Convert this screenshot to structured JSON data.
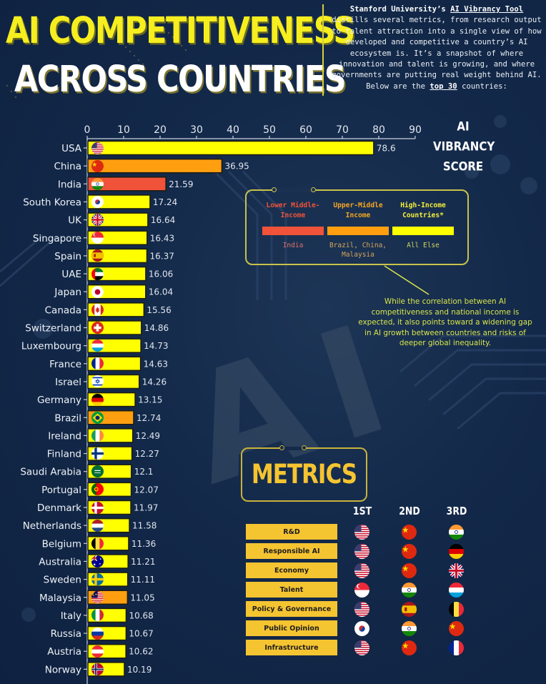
{
  "header": {
    "title_line1": "AI COMPETITIVENESS",
    "title_line2": "ACROSS COUNTRIES",
    "intro_prefix": "Stanford University’s ",
    "intro_link": "AI Vibrancy Tool",
    "intro_body": " distills several metrics, from research output to talent attraction into a single view of how developed and competitive a country’s AI ecosystem is. It’s a snapshot of where innovation and talent is growing, and where governments are putting real weight behind AI. Below are the ",
    "intro_emphasis": "top 30",
    "intro_suffix": " countries:"
  },
  "colors": {
    "high_income": "#ffff00",
    "upper_middle": "#ff9f10",
    "lower_middle": "#f0533a",
    "accent_yellow": "#f6ee1f",
    "metric_gold": "#f5c431"
  },
  "chart_data": {
    "type": "bar",
    "orientation": "horizontal",
    "title": "AI Competitiveness Across Countries",
    "xlabel": "AI VIBRANCY SCORE",
    "ylabel": "",
    "xlim": [
      0,
      90
    ],
    "xticks": [
      0,
      10,
      20,
      30,
      40,
      50,
      60,
      70,
      80,
      90
    ],
    "grid": false,
    "legend_position": "right",
    "categories": [
      "USA",
      "China",
      "India",
      "South Korea",
      "UK",
      "Singapore",
      "Spain",
      "UAE",
      "Japan",
      "Canada",
      "Switzerland",
      "Luxembourg",
      "France",
      "Israel",
      "Germany",
      "Brazil",
      "Ireland",
      "Finland",
      "Saudi Arabia",
      "Portugal",
      "Denmark",
      "Netherlands",
      "Belgium",
      "Australia",
      "Sweden",
      "Malaysia",
      "Italy",
      "Russia",
      "Austria",
      "Norway"
    ],
    "values": [
      78.6,
      36.95,
      21.59,
      17.24,
      16.64,
      16.43,
      16.37,
      16.06,
      16.04,
      15.56,
      14.86,
      14.73,
      14.63,
      14.26,
      13.15,
      12.74,
      12.49,
      12.27,
      12.1,
      12.07,
      11.97,
      11.58,
      11.36,
      11.21,
      11.11,
      11.05,
      10.68,
      10.67,
      10.62,
      10.19
    ],
    "value_labels": [
      "78.6",
      "36.95",
      "21.59",
      "17.24",
      "16.64",
      "16.43",
      "16.37",
      "16.06",
      "16.04",
      "15.56",
      "14.86",
      "14.73",
      "14.63",
      "14.26",
      "13.15",
      "12.74",
      "12.49",
      "12.27",
      "12.1",
      "12.07",
      "11.97",
      "11.58",
      "11.36",
      "11.21",
      "11.11",
      "11.05",
      "10.68",
      "10.67",
      "10.62",
      "10.19"
    ],
    "income_group": [
      "high",
      "upper_middle",
      "lower_middle",
      "high",
      "high",
      "high",
      "high",
      "high",
      "high",
      "high",
      "high",
      "high",
      "high",
      "high",
      "high",
      "upper_middle",
      "high",
      "high",
      "high",
      "high",
      "high",
      "high",
      "high",
      "high",
      "high",
      "upper_middle",
      "high",
      "high",
      "high",
      "high"
    ],
    "flags": [
      "usa",
      "china",
      "india",
      "south-korea",
      "uk",
      "singapore",
      "spain",
      "uae",
      "japan",
      "canada",
      "switzerland",
      "luxembourg",
      "france",
      "israel",
      "germany",
      "brazil",
      "ireland",
      "finland",
      "saudi-arabia",
      "portugal",
      "denmark",
      "netherlands",
      "belgium",
      "australia",
      "sweden",
      "malaysia",
      "italy",
      "russia",
      "austria",
      "norway"
    ]
  },
  "axis_title": {
    "line1": "AI",
    "line2": "VIBRANCY",
    "line3": "SCORE"
  },
  "income_legend": [
    {
      "label": "Lower Middle-Income",
      "color": "#f0533a",
      "label_color": "#f0533a",
      "sub": "India",
      "sub_color": "#e0706a"
    },
    {
      "label": "Upper-Middle Income",
      "color": "#ff9f10",
      "label_color": "#f5a623",
      "sub": "Brazil, China, Malaysia",
      "sub_color": "#d6a55a"
    },
    {
      "label": "High-Income Countries*",
      "color": "#ffff00",
      "label_color": "#f4ef3a",
      "sub": "All Else",
      "sub_color": "#cfd35a"
    }
  ],
  "note": "While the correlation between AI competitiveness and national income is expected, it also points toward a widening gap in AI growth between countries and risks of deeper global inequality.",
  "metrics": {
    "title": "METRICS",
    "rank_headers": [
      "1ST",
      "2ND",
      "3RD"
    ],
    "rows": [
      {
        "label": "R&D",
        "ranks": [
          "usa",
          "china",
          "india"
        ]
      },
      {
        "label": "Responsible AI",
        "ranks": [
          "usa",
          "china",
          "germany"
        ]
      },
      {
        "label": "Economy",
        "ranks": [
          "usa",
          "china",
          "uk"
        ]
      },
      {
        "label": "Talent",
        "ranks": [
          "singapore",
          "india",
          "luxembourg"
        ]
      },
      {
        "label": "Policy & Governance",
        "ranks": [
          "usa",
          "spain",
          "belgium"
        ]
      },
      {
        "label": "Public Opinion",
        "ranks": [
          "south-korea",
          "india",
          "china"
        ]
      },
      {
        "label": "Infrastructure",
        "ranks": [
          "usa",
          "china",
          "france"
        ]
      }
    ]
  }
}
